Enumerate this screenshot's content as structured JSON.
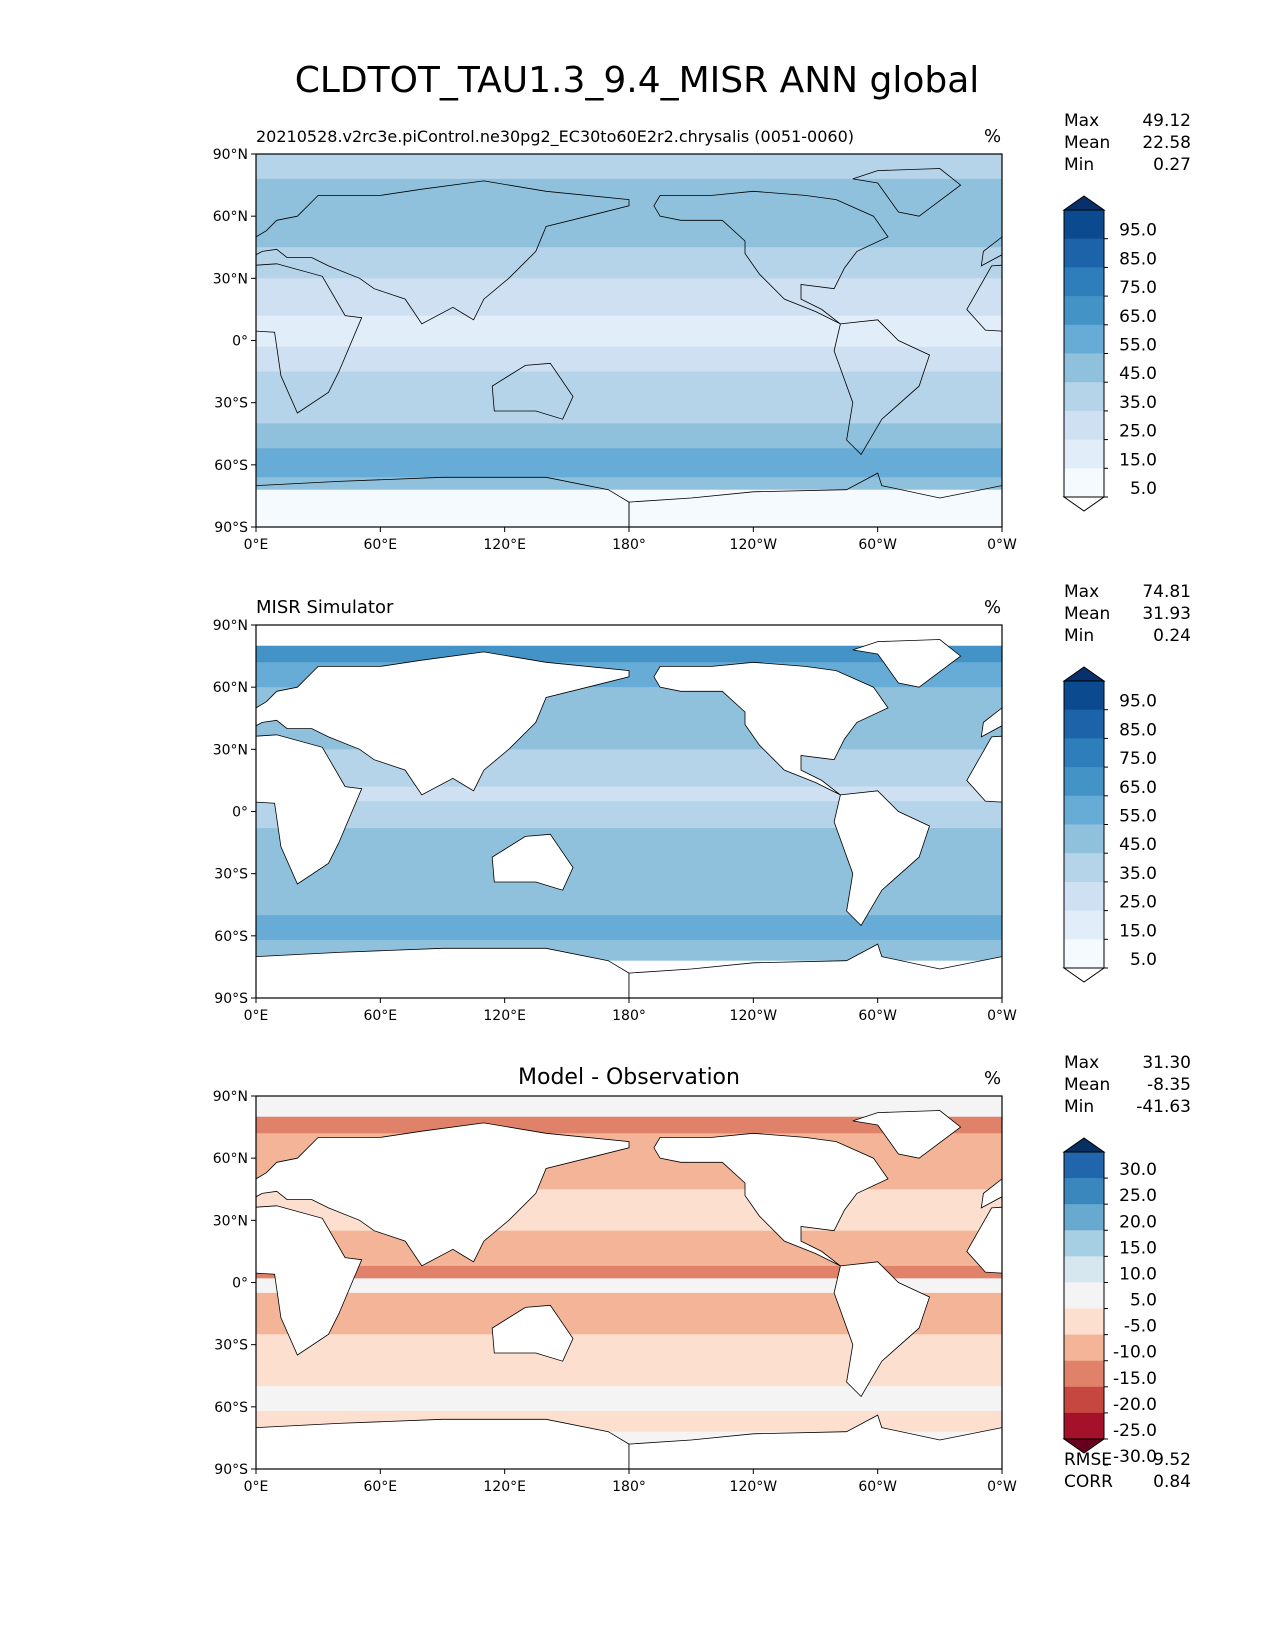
{
  "chart_data": {
    "type": "heatmap",
    "title": "CLDTOT_TAU1.3_9.4_MISR ANN global",
    "x_ticks": [
      "0°E",
      "60°E",
      "120°E",
      "180°",
      "120°W",
      "60°W",
      "0°W"
    ],
    "y_ticks": [
      "90°N",
      "60°N",
      "30°N",
      "0°",
      "30°S",
      "60°S",
      "90°S"
    ],
    "panels": [
      {
        "subtitle": "20210528.v2rc3e.piControl.ne30pg2_EC30to60E2r2.chrysalis (0051-0060)",
        "subtitle_align": "left",
        "units": "%",
        "stats": [
          {
            "label": "Max",
            "value": "49.12"
          },
          {
            "label": "Mean",
            "value": "22.58"
          },
          {
            "label": "Min",
            "value": "0.27"
          }
        ],
        "colorbar_labels": [
          "95.0",
          "85.0",
          "75.0",
          "65.0",
          "55.0",
          "45.0",
          "35.0",
          "25.0",
          "15.0",
          "5.0"
        ],
        "colorbar_colors": [
          "#08306b",
          "#0b4a8e",
          "#1c63a9",
          "#2f7ebc",
          "#4493c6",
          "#67acd6",
          "#8fc1dd",
          "#b5d3e9",
          "#cfe0f2",
          "#e1edf8",
          "#f5faff",
          "#ffffff"
        ],
        "mask_land": false,
        "zonal_bands": [
          [
            90,
            78,
            7
          ],
          [
            78,
            45,
            6
          ],
          [
            45,
            30,
            7
          ],
          [
            30,
            12,
            8
          ],
          [
            12,
            -3,
            9
          ],
          [
            -3,
            -15,
            8
          ],
          [
            -15,
            -40,
            7
          ],
          [
            -40,
            -52,
            6
          ],
          [
            -52,
            -66,
            5
          ],
          [
            -66,
            -72,
            6
          ],
          [
            -72,
            -90,
            10
          ]
        ]
      },
      {
        "subtitle": "MISR Simulator",
        "subtitle_align": "left",
        "units": "%",
        "stats": [
          {
            "label": "Max",
            "value": "74.81"
          },
          {
            "label": "Mean",
            "value": "31.93"
          },
          {
            "label": "Min",
            "value": "0.24"
          }
        ],
        "colorbar_labels": [
          "95.0",
          "85.0",
          "75.0",
          "65.0",
          "55.0",
          "45.0",
          "35.0",
          "25.0",
          "15.0",
          "5.0"
        ],
        "colorbar_colors": [
          "#08306b",
          "#0b4a8e",
          "#1c63a9",
          "#2f7ebc",
          "#4493c6",
          "#67acd6",
          "#8fc1dd",
          "#b5d3e9",
          "#cfe0f2",
          "#e1edf8",
          "#f5faff",
          "#ffffff"
        ],
        "mask_land": true,
        "zonal_bands": [
          [
            90,
            80,
            11
          ],
          [
            80,
            72,
            4
          ],
          [
            72,
            60,
            5
          ],
          [
            60,
            30,
            6
          ],
          [
            30,
            12,
            7
          ],
          [
            12,
            5,
            8
          ],
          [
            5,
            -8,
            7
          ],
          [
            -8,
            -50,
            6
          ],
          [
            -50,
            -62,
            5
          ],
          [
            -62,
            -72,
            6
          ],
          [
            -72,
            -90,
            11
          ]
        ]
      },
      {
        "subtitle": "Model - Observation",
        "subtitle_align": "center",
        "units": "%",
        "stats": [
          {
            "label": "Max",
            "value": "31.30"
          },
          {
            "label": "Mean",
            "value": "-8.35"
          },
          {
            "label": "Min",
            "value": "-41.63"
          }
        ],
        "colorbar_labels": [
          "30.0",
          "25.0",
          "20.0",
          "15.0",
          "10.0",
          "5.0",
          "-5.0",
          "-10.0",
          "-15.0",
          "-20.0",
          "-25.0",
          "-30.0"
        ],
        "colorbar_colors": [
          "#053061",
          "#2166ac",
          "#3a87bd",
          "#67a9cf",
          "#a7cfe4",
          "#d6e7f0",
          "#f4f4f4",
          "#fcdfcf",
          "#f4b497",
          "#e0826a",
          "#c5473f",
          "#a5112a",
          "#67001f"
        ],
        "mask_land": true,
        "zonal_bands": [
          [
            90,
            80,
            6
          ],
          [
            80,
            72,
            9
          ],
          [
            72,
            45,
            8
          ],
          [
            45,
            25,
            7
          ],
          [
            25,
            8,
            8
          ],
          [
            8,
            2,
            9
          ],
          [
            2,
            -5,
            6
          ],
          [
            -5,
            -25,
            8
          ],
          [
            -25,
            -50,
            7
          ],
          [
            -50,
            -62,
            6
          ],
          [
            -62,
            -72,
            7
          ],
          [
            -72,
            -90,
            6
          ]
        ],
        "extra_stats": [
          {
            "label": "RMSE",
            "value": "9.52"
          },
          {
            "label": "CORR",
            "value": "0.84"
          }
        ]
      }
    ],
    "continents": [
      [
        [
          -17,
          15
        ],
        [
          -5,
          36
        ],
        [
          10,
          37
        ],
        [
          32,
          31
        ],
        [
          43,
          12
        ],
        [
          51,
          11
        ],
        [
          40,
          -15
        ],
        [
          35,
          -25
        ],
        [
          20,
          -35
        ],
        [
          12,
          -17
        ],
        [
          9,
          4
        ],
        [
          -8,
          5
        ],
        [
          -17,
          15
        ]
      ],
      [
        [
          -10,
          36
        ],
        [
          -9,
          43
        ],
        [
          0,
          50
        ],
        [
          5,
          53
        ],
        [
          10,
          58
        ],
        [
          20,
          60
        ],
        [
          30,
          70
        ],
        [
          60,
          70
        ],
        [
          80,
          73
        ],
        [
          110,
          77
        ],
        [
          140,
          72
        ],
        [
          180,
          68
        ],
        [
          180,
          65
        ],
        [
          160,
          60
        ],
        [
          140,
          55
        ],
        [
          135,
          43
        ],
        [
          122,
          30
        ],
        [
          110,
          20
        ],
        [
          105,
          10
        ],
        [
          100,
          13
        ],
        [
          95,
          16
        ],
        [
          80,
          8
        ],
        [
          72,
          20
        ],
        [
          57,
          25
        ],
        [
          50,
          30
        ],
        [
          35,
          36
        ],
        [
          27,
          40
        ],
        [
          15,
          40
        ],
        [
          10,
          44
        ],
        [
          3,
          43
        ],
        [
          -10,
          36
        ]
      ],
      [
        [
          114,
          -22
        ],
        [
          130,
          -12
        ],
        [
          142,
          -11
        ],
        [
          153,
          -27
        ],
        [
          148,
          -38
        ],
        [
          135,
          -34
        ],
        [
          115,
          -34
        ]
      ],
      [
        [
          -168,
          65
        ],
        [
          -165,
          70
        ],
        [
          -140,
          70
        ],
        [
          -120,
          72
        ],
        [
          -95,
          70
        ],
        [
          -80,
          68
        ],
        [
          -62,
          60
        ],
        [
          -55,
          50
        ],
        [
          -70,
          43
        ],
        [
          -76,
          35
        ],
        [
          -81,
          25
        ],
        [
          -97,
          27
        ],
        [
          -97,
          20
        ],
        [
          -87,
          15
        ],
        [
          -78,
          8
        ],
        [
          -90,
          14
        ],
        [
          -105,
          20
        ],
        [
          -117,
          32
        ],
        [
          -124,
          42
        ],
        [
          -124,
          48
        ],
        [
          -135,
          58
        ],
        [
          -155,
          58
        ],
        [
          -165,
          60
        ]
      ],
      [
        [
          -78,
          8
        ],
        [
          -60,
          10
        ],
        [
          -50,
          0
        ],
        [
          -35,
          -7
        ],
        [
          -40,
          -22
        ],
        [
          -58,
          -38
        ],
        [
          -68,
          -55
        ],
        [
          -75,
          -48
        ],
        [
          -72,
          -30
        ],
        [
          -81,
          -5
        ],
        [
          -78,
          8
        ]
      ],
      [
        [
          -60,
          76
        ],
        [
          -72,
          78
        ],
        [
          -60,
          82
        ],
        [
          -30,
          83
        ],
        [
          -20,
          75
        ],
        [
          -40,
          60
        ],
        [
          -50,
          62
        ]
      ],
      [
        [
          -180,
          -78
        ],
        [
          -150,
          -76
        ],
        [
          -120,
          -73
        ],
        [
          -75,
          -72
        ],
        [
          -60,
          -64
        ],
        [
          -58,
          -70
        ],
        [
          -30,
          -76
        ],
        [
          0,
          -70
        ],
        [
          40,
          -68
        ],
        [
          90,
          -66
        ],
        [
          140,
          -66
        ],
        [
          170,
          -72
        ],
        [
          180,
          -78
        ],
        [
          180,
          -90
        ],
        [
          -180,
          -90
        ]
      ]
    ]
  }
}
